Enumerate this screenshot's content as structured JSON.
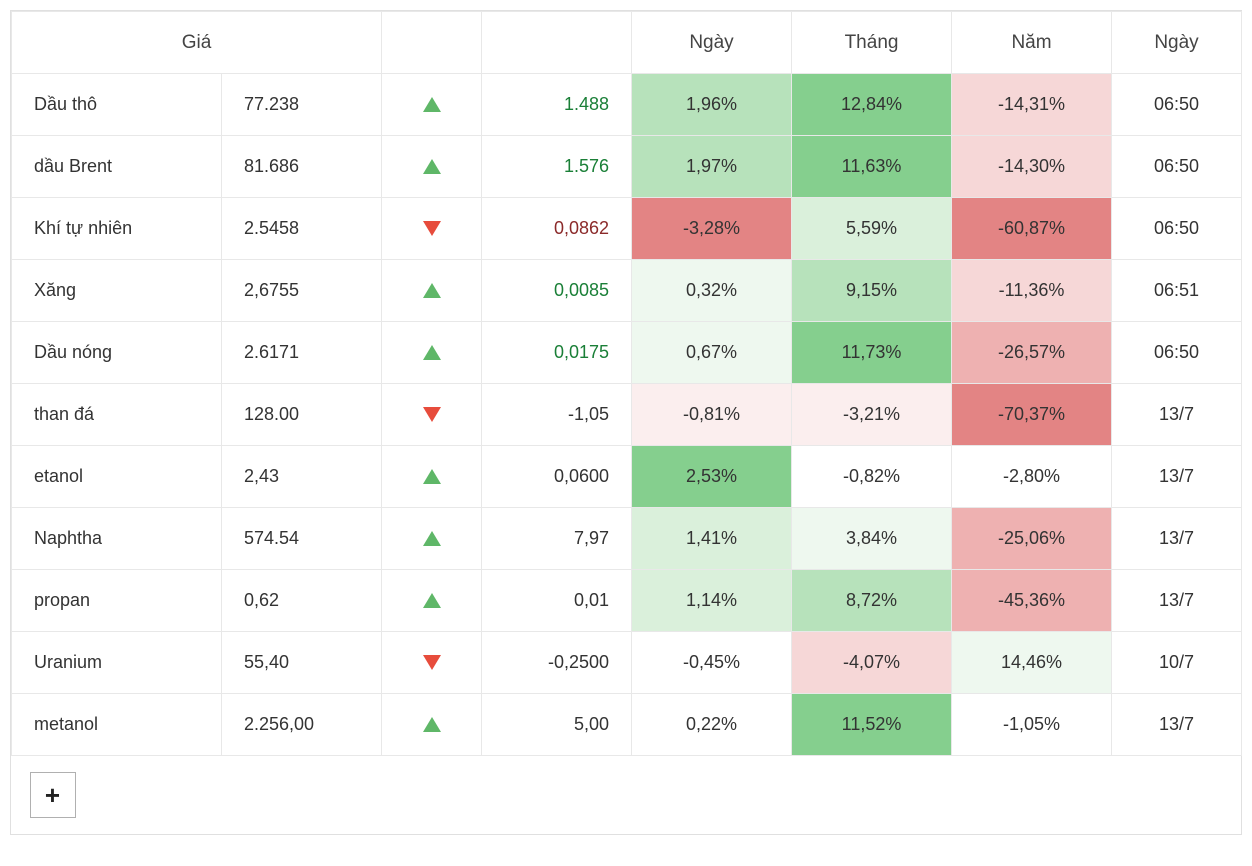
{
  "headers": {
    "price": "Giá",
    "day_pct": "Ngày",
    "month_pct": "Tháng",
    "year_pct": "Năm",
    "date": "Ngày"
  },
  "plus_label": "+",
  "heat_scale": {
    "green_strong": "#85cf8e",
    "green_med": "#b7e2bb",
    "green_light": "#daf0db",
    "green_faint": "#eef8ef",
    "red_strong": "#e38484",
    "red_med": "#eeb1b1",
    "red_light": "#f6d7d7",
    "red_faint": "#fbeeee",
    "neutral": "#ffffff"
  },
  "rows": [
    {
      "name": "Dầu thô",
      "price": "77.238",
      "dir": "up",
      "change": "1.488",
      "day": {
        "text": "1,96%",
        "bg": "#b7e2bb"
      },
      "month": {
        "text": "12,84%",
        "bg": "#85cf8e"
      },
      "year": {
        "text": "-14,31%",
        "bg": "#f6d7d7"
      },
      "date": "06:50"
    },
    {
      "name": "dầu Brent",
      "price": "81.686",
      "dir": "up",
      "change": "1.576",
      "day": {
        "text": "1,97%",
        "bg": "#b7e2bb"
      },
      "month": {
        "text": "11,63%",
        "bg": "#85cf8e"
      },
      "year": {
        "text": "-14,30%",
        "bg": "#f6d7d7"
      },
      "date": "06:50"
    },
    {
      "name": "Khí tự nhiên",
      "price": "2.5458",
      "dir": "down",
      "change": "0,0862",
      "day": {
        "text": "-3,28%",
        "bg": "#e38484"
      },
      "month": {
        "text": "5,59%",
        "bg": "#daf0db"
      },
      "year": {
        "text": "-60,87%",
        "bg": "#e38484"
      },
      "date": "06:50"
    },
    {
      "name": "Xăng",
      "price": "2,6755",
      "dir": "up",
      "change": "0,0085",
      "day": {
        "text": "0,32%",
        "bg": "#eef8ef"
      },
      "month": {
        "text": "9,15%",
        "bg": "#b7e2bb"
      },
      "year": {
        "text": "-11,36%",
        "bg": "#f6d7d7"
      },
      "date": "06:51"
    },
    {
      "name": "Dầu nóng",
      "price": "2.6171",
      "dir": "up",
      "change": "0,0175",
      "day": {
        "text": "0,67%",
        "bg": "#eef8ef"
      },
      "month": {
        "text": "11,73%",
        "bg": "#85cf8e"
      },
      "year": {
        "text": "-26,57%",
        "bg": "#eeb1b1"
      },
      "date": "06:50"
    },
    {
      "name": "than đá",
      "price": "128.00",
      "dir": "down",
      "change": "-1,05",
      "day": {
        "text": "-0,81%",
        "bg": "#fbeeee"
      },
      "month": {
        "text": "-3,21%",
        "bg": "#fbeeee"
      },
      "year": {
        "text": "-70,37%",
        "bg": "#e38484"
      },
      "date": "13/7"
    },
    {
      "name": "etanol",
      "price": "2,43",
      "dir": "up",
      "change": "0,0600",
      "day": {
        "text": "2,53%",
        "bg": "#85cf8e"
      },
      "month": {
        "text": "-0,82%",
        "bg": "#ffffff"
      },
      "year": {
        "text": "-2,80%",
        "bg": "#ffffff"
      },
      "date": "13/7"
    },
    {
      "name": "Naphtha",
      "price": "574.54",
      "dir": "up",
      "change": "7,97",
      "day": {
        "text": "1,41%",
        "bg": "#daf0db"
      },
      "month": {
        "text": "3,84%",
        "bg": "#eef8ef"
      },
      "year": {
        "text": "-25,06%",
        "bg": "#eeb1b1"
      },
      "date": "13/7"
    },
    {
      "name": "propan",
      "price": "0,62",
      "dir": "up",
      "change": "0,01",
      "day": {
        "text": "1,14%",
        "bg": "#daf0db"
      },
      "month": {
        "text": "8,72%",
        "bg": "#b7e2bb"
      },
      "year": {
        "text": "-45,36%",
        "bg": "#eeb1b1"
      },
      "date": "13/7"
    },
    {
      "name": "Uranium",
      "price": "55,40",
      "dir": "down",
      "change": "-0,2500",
      "day": {
        "text": "-0,45%",
        "bg": "#ffffff"
      },
      "month": {
        "text": "-4,07%",
        "bg": "#f6d7d7"
      },
      "year": {
        "text": "14,46%",
        "bg": "#eef8ef"
      },
      "date": "10/7"
    },
    {
      "name": "metanol",
      "price": "2.256,00",
      "dir": "up",
      "change": "5,00",
      "day": {
        "text": "0,22%",
        "bg": "#ffffff"
      },
      "month": {
        "text": "11,52%",
        "bg": "#85cf8e"
      },
      "year": {
        "text": "-1,05%",
        "bg": "#ffffff"
      },
      "date": "13/7"
    }
  ]
}
